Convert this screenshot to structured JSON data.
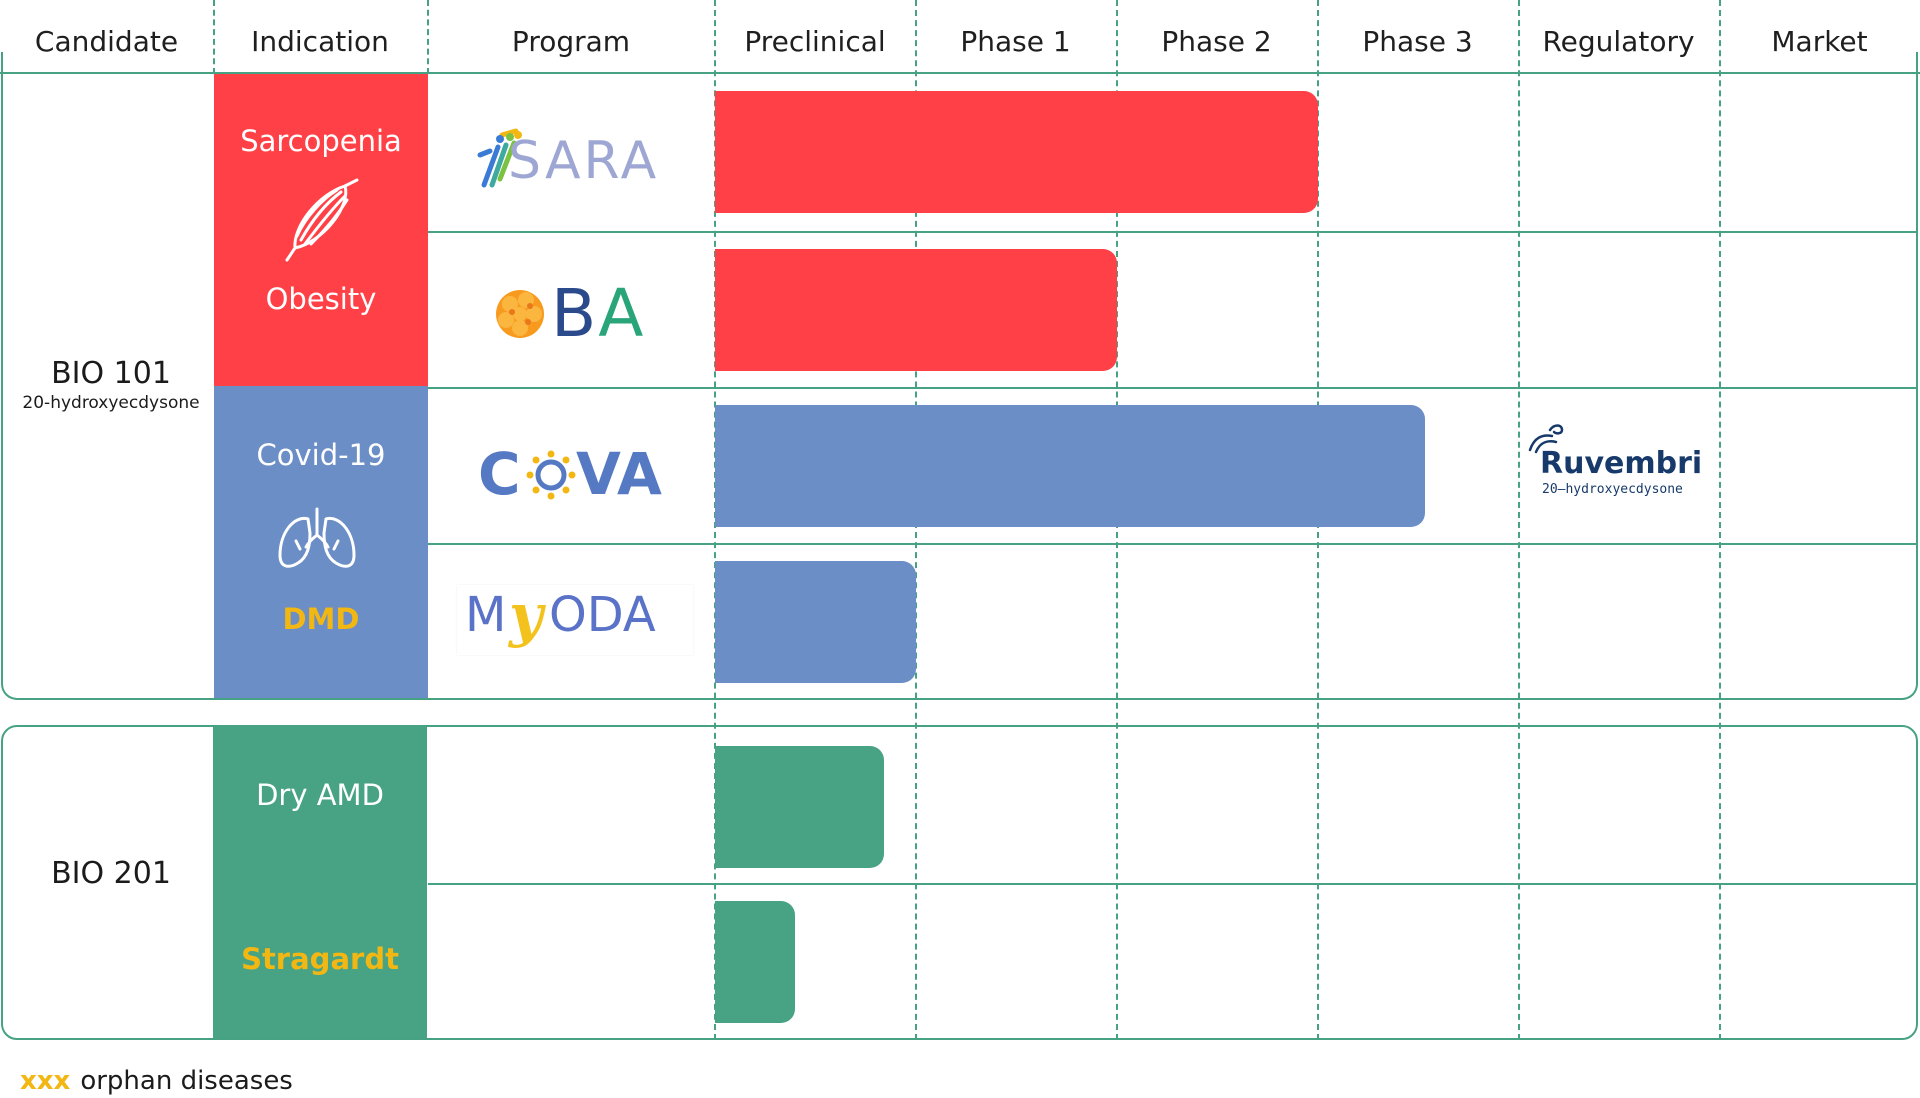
{
  "headers": [
    "Candidate",
    "Indication",
    "Program",
    "Preclinical",
    "Phase 1",
    "Phase 2",
    "Phase 3",
    "Regulatory",
    "Market"
  ],
  "candidates": [
    {
      "name": "BIO 101",
      "subtitle": "20-hydroxyecdysone"
    },
    {
      "name": "BIO 201",
      "subtitle": ""
    }
  ],
  "indications": {
    "sarcopenia": "Sarcopenia",
    "obesity": "Obesity",
    "covid": "Covid-19",
    "dmd": "DMD",
    "dry_amd": "Dry AMD",
    "stragardt": "Stragardt"
  },
  "programs": {
    "sara": "SARA",
    "oba": "BA",
    "cova": "COVA",
    "myoda_m": "M",
    "myoda_y": "y",
    "myoda_rest": "ODA"
  },
  "regulatory_product": {
    "name": "Ruvembri",
    "subtitle": "20–hydroxyecdysone"
  },
  "legend": {
    "marker": "xxx",
    "text": "orphan diseases"
  },
  "colors": {
    "red": "#ff4147",
    "blue": "#6a8ec5",
    "green": "#47a383",
    "grid": "#46a283",
    "orphan": "#f3b713",
    "navy": "#173a6b"
  },
  "chart_data": {
    "type": "bar",
    "stages": [
      "Preclinical",
      "Phase 1",
      "Phase 2",
      "Phase 3",
      "Regulatory",
      "Market"
    ],
    "programs": [
      {
        "candidate": "BIO 101",
        "program": "SARA",
        "indications": [
          "Sarcopenia"
        ],
        "progress_stages": 3.0,
        "color": "#ff4147"
      },
      {
        "candidate": "BIO 101",
        "program": "OBA",
        "indications": [
          "Obesity"
        ],
        "progress_stages": 2.0,
        "color": "#ff4147"
      },
      {
        "candidate": "BIO 101",
        "program": "COVA",
        "indications": [
          "Covid-19"
        ],
        "progress_stages": 3.53,
        "color": "#6a8ec5"
      },
      {
        "candidate": "BIO 101",
        "program": "MYODA",
        "indications": [
          "DMD"
        ],
        "progress_stages": 1.0,
        "color": "#6a8ec5"
      },
      {
        "candidate": "BIO 201",
        "program": "",
        "indications": [
          "Dry AMD"
        ],
        "progress_stages": 0.84,
        "color": "#47a383"
      },
      {
        "candidate": "BIO 201",
        "program": "",
        "indications": [
          "Stragardt"
        ],
        "progress_stages": 0.4,
        "color": "#47a383"
      }
    ]
  }
}
